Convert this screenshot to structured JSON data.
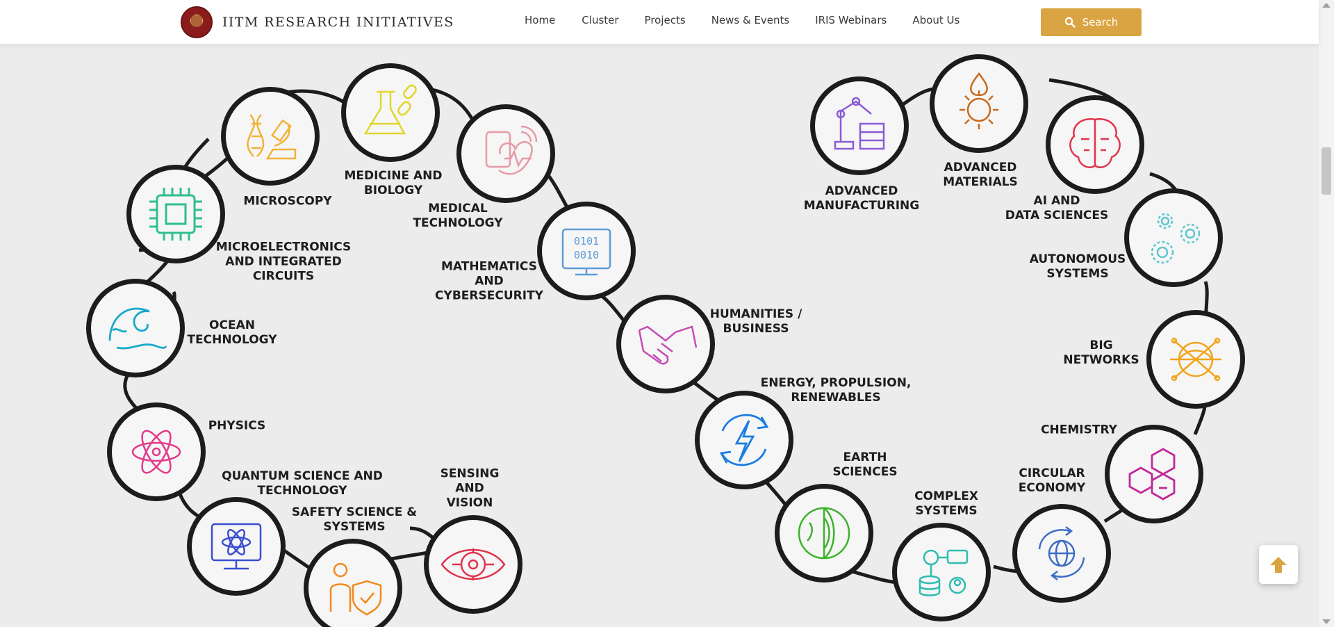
{
  "header": {
    "brand": "IITM RESEARCH INITIATIVES",
    "nav": [
      "Home",
      "Cluster",
      "Projects",
      "News & Events",
      "IRIS Webinars",
      "About Us"
    ],
    "search_label": "Search"
  },
  "clusters_left": [
    {
      "label": "MICROSCOPY",
      "icon": "microscope-dna-icon",
      "color": "#f2b236"
    },
    {
      "label": "MEDICINE AND\nBIOLOGY",
      "icon": "flask-pills-icon",
      "color": "#e2d62a"
    },
    {
      "label": "MEDICAL\nTECHNOLOGY",
      "icon": "medical-device-heart-icon",
      "color": "#e79aa4"
    },
    {
      "label": "MICROELECTRONICS\nAND INTEGRATED\nCIRCUITS",
      "icon": "chip-icon",
      "color": "#2fbf8f"
    },
    {
      "label": "MATHEMATICS\nAND\nCYBERSECURITY",
      "icon": "binary-monitor-icon",
      "color": "#5d9bd8"
    },
    {
      "label": "OCEAN\nTECHNOLOGY",
      "icon": "wave-icon",
      "color": "#16a9c9"
    },
    {
      "label": "PHYSICS",
      "icon": "atom-icon",
      "color": "#e2398a"
    },
    {
      "label": "QUANTUM SCIENCE AND\nTECHNOLOGY",
      "icon": "quantum-monitor-icon",
      "color": "#3a4ed0"
    },
    {
      "label": "SAFETY SCIENCE &\nSYSTEMS",
      "icon": "person-shield-icon",
      "color": "#f08a1c"
    },
    {
      "label": "SENSING\nAND\nVISION",
      "icon": "eye-circuit-icon",
      "color": "#e2324d"
    }
  ],
  "clusters_right": [
    {
      "label": "HUMANITIES /\nBUSINESS",
      "icon": "handshake-icon",
      "color": "#c54bb6"
    },
    {
      "label": "ENERGY, PROPULSION,\nRENEWABLES",
      "icon": "energy-cycle-icon",
      "color": "#1a7de0"
    },
    {
      "label": "EARTH\nSCIENCES",
      "icon": "earth-layers-icon",
      "color": "#3bb22a"
    },
    {
      "label": "COMPLEX\nSYSTEMS",
      "icon": "network-database-icon",
      "color": "#2dbdb0"
    },
    {
      "label": "CIRCULAR\nECONOMY",
      "icon": "globe-cycle-icon",
      "color": "#3d6ec4"
    },
    {
      "label": "CHEMISTRY",
      "icon": "hexagons-icon",
      "color": "#c0289a"
    },
    {
      "label": "BIG\nNETWORKS",
      "icon": "network-globe-icon",
      "color": "#f2a51b"
    },
    {
      "label": "AUTONOMOUS\nSYSTEMS",
      "icon": "gears-icon",
      "color": "#5fc6cf"
    },
    {
      "label": "AI AND\nDATA SCIENCES",
      "icon": "brain-circuit-icon",
      "color": "#e2334a"
    },
    {
      "label": "ADVANCED\nMATERIALS",
      "icon": "gear-drop-icon",
      "color": "#c86a1d"
    },
    {
      "label": "ADVANCED\nMANUFACTURING",
      "icon": "robot-arm-icon",
      "color": "#8a5bd6"
    }
  ]
}
